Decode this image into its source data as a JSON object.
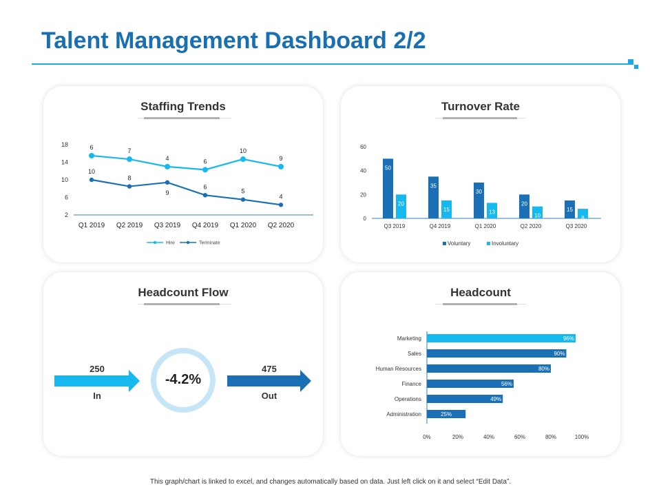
{
  "page": {
    "title": "Talent Management Dashboard 2/2",
    "footer": "This graph/chart is linked to excel, and changes automatically based on data. Just left click on it and select “Edit Data”."
  },
  "colors": {
    "accent": "#19a9e6",
    "dark": "#1b6fb5",
    "light": "#16b8f0",
    "ring": "#c6e6f8"
  },
  "chart_data": [
    {
      "id": "staffing",
      "type": "line",
      "title": "Staffing Trends",
      "categories": [
        "Q1 2019",
        "Q2 2019",
        "Q3 2019",
        "Q4 2019",
        "Q1 2020",
        "Q2 2020"
      ],
      "y_ticks": [
        "18",
        "14",
        "10",
        "6",
        "2"
      ],
      "ylim": [
        2,
        18
      ],
      "series": [
        {
          "name": "Hire",
          "values": [
            15.5,
            14.7,
            13.0,
            12.3,
            14.7,
            13.0
          ],
          "labels": [
            "6",
            "7",
            "4",
            "6",
            "10",
            "9"
          ]
        },
        {
          "name": "Terminate",
          "values": [
            10.0,
            8.5,
            9.4,
            6.5,
            5.5,
            4.3
          ],
          "labels": [
            "10",
            "8",
            "9",
            "6",
            "5",
            "4"
          ]
        }
      ]
    },
    {
      "id": "turnover",
      "type": "bar",
      "title": "Turnover Rate",
      "categories": [
        "Q3 2019",
        "Q4 2019",
        "Q1 2020",
        "Q2 2020",
        "Q3 2020"
      ],
      "y_ticks": [
        "60",
        "40",
        "20",
        "0"
      ],
      "ylim": [
        0,
        60
      ],
      "series": [
        {
          "name": "Voluntary",
          "values": [
            50,
            35,
            30,
            20,
            15
          ]
        },
        {
          "name": "Involuntary",
          "values": [
            20,
            15,
            13,
            10,
            8
          ]
        }
      ]
    },
    {
      "id": "headcount",
      "type": "bar",
      "orientation": "horizontal",
      "title": "Headcount",
      "categories": [
        "Marketing",
        "Sales",
        "Human Resources",
        "Finance",
        "Operations",
        "Administration"
      ],
      "values": [
        96,
        90,
        80,
        56,
        49,
        25
      ],
      "value_labels": [
        "96%",
        "90%",
        "80%",
        "56%",
        "49%",
        "25%"
      ],
      "x_ticks": [
        "0%",
        "20%",
        "40%",
        "60%",
        "80%",
        "100%"
      ],
      "xlim": [
        0,
        100
      ]
    }
  ],
  "headcount_flow": {
    "title": "Headcount Flow",
    "in_value": "250",
    "in_label": "In",
    "out_value": "475",
    "out_label": "Out",
    "change": "-4.2%"
  }
}
